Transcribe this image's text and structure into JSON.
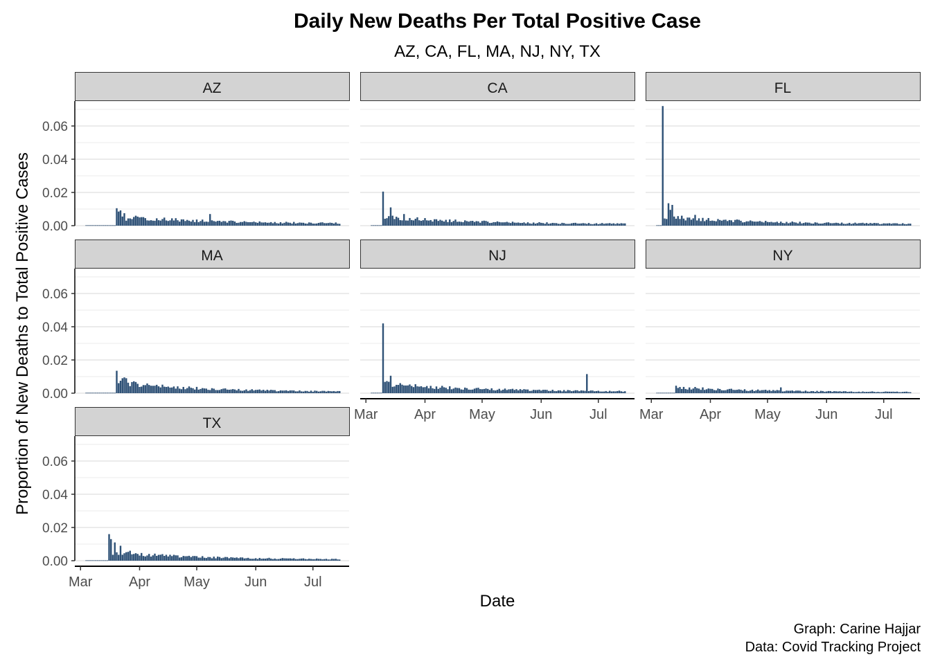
{
  "title": "Daily New Deaths Per Total Positive Case",
  "subtitle": "AZ, CA, FL, MA, NJ, NY, TX",
  "xlabel": "Date",
  "ylabel": "Proportion of New Deaths to Total Positive Cases",
  "caption_line1": "Graph: Carine Hajjar",
  "caption_line2": "Data: Covid Tracking Project",
  "colors": {
    "bar": "#2e5176",
    "strip": "#d3d3d3",
    "grid": "#ebebeb"
  },
  "chart_data": {
    "type": "bar",
    "facet_by": "state",
    "ylim": [
      0,
      0.075
    ],
    "y_ticks": [
      0.0,
      0.02,
      0.04,
      0.06
    ],
    "y_tick_labels": [
      "0.00",
      "0.02",
      "0.04",
      "0.06"
    ],
    "x_range": [
      "2020-02-27",
      "2020-07-20"
    ],
    "x_ticks": [
      "2020-03-01",
      "2020-04-01",
      "2020-05-01",
      "2020-06-01",
      "2020-07-01"
    ],
    "x_tick_labels": [
      "Mar",
      "Apr",
      "May",
      "Jun",
      "Jul"
    ],
    "date_start": "2020-03-04",
    "date_end": "2020-07-15",
    "facets": [
      {
        "state": "AZ",
        "first_death": "2020-03-20",
        "peaks": [
          [
            "2020-03-20",
            0.0105
          ],
          [
            "2020-03-21",
            0.0085
          ],
          [
            "2020-03-22",
            0.0092
          ],
          [
            "2020-03-23",
            0.0055
          ],
          [
            "2020-03-24",
            0.0075
          ],
          [
            "2020-03-25",
            0.003
          ],
          [
            "2020-03-30",
            0.006
          ],
          [
            "2020-04-20",
            0.0045
          ],
          [
            "2020-05-08",
            0.007
          ]
        ],
        "level_start": 0.0045,
        "level_end": 0.0012
      },
      {
        "state": "CA",
        "first_death": "2020-03-10",
        "peaks": [
          [
            "2020-03-10",
            0.0205
          ],
          [
            "2020-03-12",
            0.0045
          ],
          [
            "2020-03-14",
            0.011
          ],
          [
            "2020-03-15",
            0.006
          ],
          [
            "2020-03-16",
            0.004
          ],
          [
            "2020-03-21",
            0.007
          ]
        ],
        "level_start": 0.0045,
        "level_end": 0.0008
      },
      {
        "state": "FL",
        "first_death": "2020-03-07",
        "peaks": [
          [
            "2020-03-07",
            0.072
          ],
          [
            "2020-03-10",
            0.0135
          ],
          [
            "2020-03-11",
            0.0095
          ],
          [
            "2020-03-12",
            0.0125
          ],
          [
            "2020-03-13",
            0.0055
          ],
          [
            "2020-03-17",
            0.006
          ],
          [
            "2020-03-24",
            0.0065
          ]
        ],
        "level_start": 0.0045,
        "level_end": 0.0008
      },
      {
        "state": "MA",
        "first_death": "2020-03-20",
        "peaks": [
          [
            "2020-03-20",
            0.0135
          ],
          [
            "2020-03-22",
            0.0075
          ],
          [
            "2020-03-23",
            0.009
          ],
          [
            "2020-03-24",
            0.0095
          ],
          [
            "2020-03-25",
            0.009
          ]
        ],
        "level_start": 0.006,
        "level_end": 0.0006
      },
      {
        "state": "NJ",
        "first_death": "2020-03-10",
        "peaks": [
          [
            "2020-03-10",
            0.042
          ],
          [
            "2020-03-14",
            0.0105
          ],
          [
            "2020-06-25",
            0.0115
          ]
        ],
        "level_start": 0.005,
        "level_end": 0.0008
      },
      {
        "state": "NY",
        "first_death": "2020-03-14",
        "peaks": [
          [
            "2020-03-14",
            0.0045
          ],
          [
            "2020-05-08",
            0.0035
          ]
        ],
        "level_start": 0.003,
        "level_end": 0.0005
      },
      {
        "state": "TX",
        "first_death": "2020-03-16",
        "peaks": [
          [
            "2020-03-16",
            0.016
          ],
          [
            "2020-03-17",
            0.013
          ],
          [
            "2020-03-19",
            0.011
          ],
          [
            "2020-03-22",
            0.009
          ],
          [
            "2020-03-27",
            0.006
          ]
        ],
        "level_start": 0.0045,
        "level_end": 0.0006
      }
    ]
  }
}
